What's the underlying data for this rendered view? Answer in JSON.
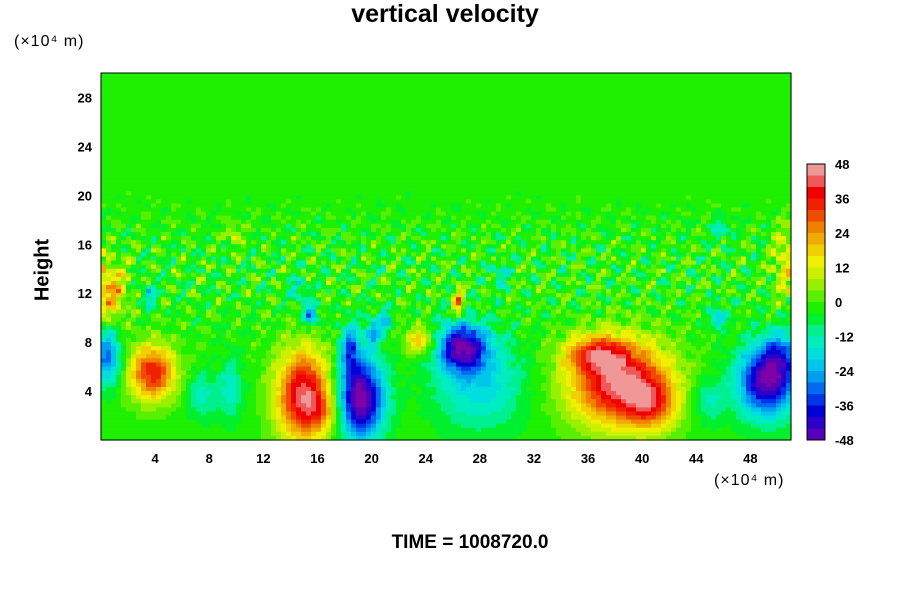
{
  "chart_data": {
    "type": "heatmap",
    "title": "vertical velocity",
    "xlabel": "",
    "ylabel": "Height",
    "x_units": "(×10⁴ m)",
    "y_units": "(×10⁴ m)",
    "xlim": [
      0,
      51
    ],
    "ylim": [
      0,
      30
    ],
    "x_ticks": [
      "4",
      "8",
      "12",
      "16",
      "20",
      "24",
      "28",
      "32",
      "36",
      "40",
      "44",
      "48"
    ],
    "y_ticks": [
      "4",
      "8",
      "12",
      "16",
      "20",
      "24",
      "28"
    ],
    "x_tick_values": [
      4,
      8,
      12,
      16,
      20,
      24,
      28,
      32,
      36,
      40,
      44,
      48
    ],
    "y_tick_values": [
      4,
      8,
      12,
      16,
      20,
      24,
      28
    ],
    "colorbar": {
      "min": -48,
      "max": 48,
      "step": 4,
      "labels": [
        "48",
        "36",
        "24",
        "12",
        "0",
        "-12",
        "-24",
        "-36",
        "-48"
      ],
      "label_values": [
        48,
        36,
        24,
        12,
        0,
        -12,
        -24,
        -36,
        -48
      ]
    },
    "features": [
      {
        "x": 3.8,
        "y": 5.5,
        "sx": 1.2,
        "sy": 1.6,
        "amp": 38
      },
      {
        "x": 15.0,
        "y": 3.6,
        "sx": 1.4,
        "sy": 2.6,
        "amp": 46
      },
      {
        "x": 16.5,
        "y": 2.3,
        "sx": 0.8,
        "sy": 1.0,
        "amp": 12
      },
      {
        "x": 19.2,
        "y": 3.4,
        "sx": 1.2,
        "sy": 2.3,
        "amp": -50
      },
      {
        "x": 18.4,
        "y": 7.5,
        "sx": 0.5,
        "sy": 1.4,
        "amp": -26
      },
      {
        "x": 20.1,
        "y": 8.8,
        "sx": 0.4,
        "sy": 0.8,
        "amp": -22
      },
      {
        "x": 21.0,
        "y": 9.7,
        "sx": 0.35,
        "sy": 0.7,
        "amp": -18
      },
      {
        "x": 23.6,
        "y": 8.1,
        "sx": 0.8,
        "sy": 0.8,
        "amp": 22
      },
      {
        "x": 26.7,
        "y": 7.6,
        "sx": 1.3,
        "sy": 1.4,
        "amp": -42
      },
      {
        "x": 28.0,
        "y": 4.6,
        "sx": 2.3,
        "sy": 2.6,
        "amp": -17
      },
      {
        "x": 26.4,
        "y": 11.2,
        "sx": 0.3,
        "sy": 0.8,
        "amp": 28
      },
      {
        "x": 38.4,
        "y": 4.6,
        "sx": 2.6,
        "sy": 2.4,
        "amp": 47
      },
      {
        "x": 36.6,
        "y": 7.1,
        "sx": 1.6,
        "sy": 1.0,
        "amp": 26
      },
      {
        "x": 40.7,
        "y": 2.8,
        "sx": 1.3,
        "sy": 1.4,
        "amp": 20
      },
      {
        "x": 49.2,
        "y": 4.8,
        "sx": 1.5,
        "sy": 2.0,
        "amp": -46
      },
      {
        "x": 50.3,
        "y": 7.0,
        "sx": 1.0,
        "sy": 1.4,
        "amp": -18
      },
      {
        "x": 0.5,
        "y": 6.8,
        "sx": 0.7,
        "sy": 1.6,
        "amp": -28
      },
      {
        "x": 0.6,
        "y": 12.2,
        "sx": 0.9,
        "sy": 1.7,
        "amp": 24
      },
      {
        "x": 3.5,
        "y": 11.8,
        "sx": 0.4,
        "sy": 0.7,
        "amp": -16
      },
      {
        "x": 7.5,
        "y": 3.6,
        "sx": 0.8,
        "sy": 1.3,
        "amp": -12
      },
      {
        "x": 9.6,
        "y": 4.2,
        "sx": 0.6,
        "sy": 1.8,
        "amp": -13
      },
      {
        "x": 14.6,
        "y": 12.2,
        "sx": 0.5,
        "sy": 0.7,
        "amp": -14
      },
      {
        "x": 15.5,
        "y": 10.2,
        "sx": 0.4,
        "sy": 0.6,
        "amp": -26
      },
      {
        "x": 44.9,
        "y": 3.2,
        "sx": 0.9,
        "sy": 1.3,
        "amp": -12
      },
      {
        "x": 45.6,
        "y": 10.0,
        "sx": 0.4,
        "sy": 0.6,
        "amp": -22
      },
      {
        "x": 50.6,
        "y": 14.5,
        "sx": 0.7,
        "sy": 2.0,
        "amp": 16
      },
      {
        "x": 45.8,
        "y": 17.2,
        "sx": 0.5,
        "sy": 0.6,
        "amp": -12
      },
      {
        "x": 29.5,
        "y": 13.5,
        "sx": 0.5,
        "sy": 0.8,
        "amp": -12
      },
      {
        "x": 9.8,
        "y": 16.8,
        "sx": 0.4,
        "sy": 0.6,
        "amp": 12
      }
    ]
  },
  "footer": {
    "time_label": "TIME = 1008720.0"
  }
}
